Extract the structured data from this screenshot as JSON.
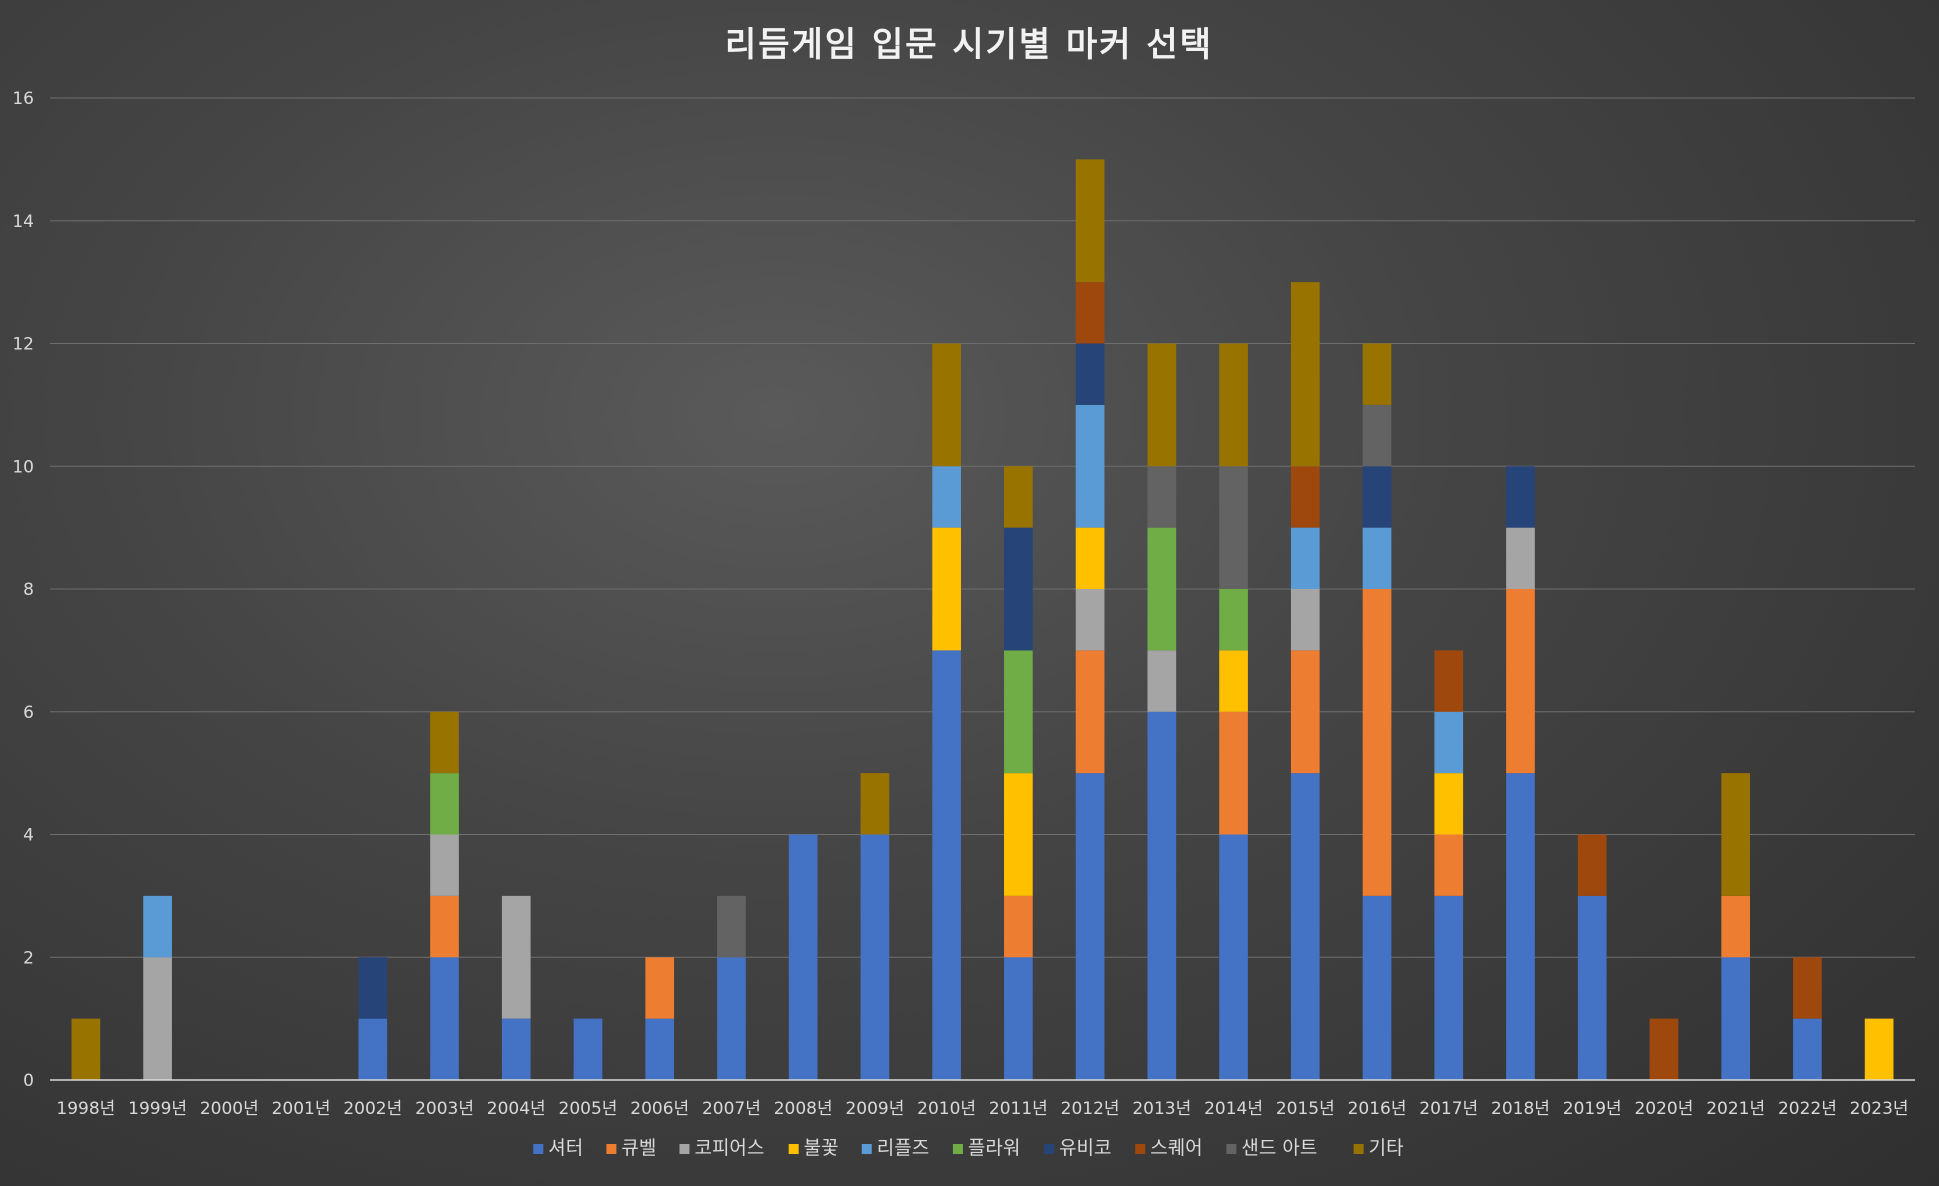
{
  "chart_data": {
    "type": "bar",
    "stacked": true,
    "title": "리듬게임 입문 시기별 마커 선택",
    "xlabel": "",
    "ylabel": "",
    "ylim": [
      0,
      16
    ],
    "yticks": [
      0,
      2,
      4,
      6,
      8,
      10,
      12,
      14,
      16
    ],
    "grid": true,
    "legend_position": "bottom",
    "categories": [
      "1998년",
      "1999년",
      "2000년",
      "2001년",
      "2002년",
      "2003년",
      "2004년",
      "2005년",
      "2006년",
      "2007년",
      "2008년",
      "2009년",
      "2010년",
      "2011년",
      "2012년",
      "2013년",
      "2014년",
      "2015년",
      "2016년",
      "2017년",
      "2018년",
      "2019년",
      "2020년",
      "2021년",
      "2022년",
      "2023년"
    ],
    "series": [
      {
        "name": "셔터",
        "color": "#4472c4",
        "values": [
          0,
          0,
          0,
          0,
          1,
          2,
          1,
          1,
          1,
          2,
          4,
          4,
          7,
          2,
          5,
          6,
          4,
          5,
          3,
          3,
          5,
          3,
          0,
          2,
          1,
          0
        ]
      },
      {
        "name": "큐벨",
        "color": "#ed7d31",
        "values": [
          0,
          0,
          0,
          0,
          0,
          1,
          0,
          0,
          1,
          0,
          0,
          0,
          0,
          1,
          2,
          0,
          2,
          2,
          5,
          1,
          3,
          0,
          0,
          1,
          0,
          0
        ]
      },
      {
        "name": "코피어스",
        "color": "#a5a5a5",
        "values": [
          0,
          2,
          0,
          0,
          0,
          1,
          2,
          0,
          0,
          0,
          0,
          0,
          0,
          0,
          1,
          1,
          0,
          1,
          0,
          0,
          1,
          0,
          0,
          0,
          0,
          0
        ]
      },
      {
        "name": "불꽃",
        "color": "#ffc000",
        "values": [
          0,
          0,
          0,
          0,
          0,
          0,
          0,
          0,
          0,
          0,
          0,
          0,
          2,
          2,
          1,
          0,
          1,
          0,
          0,
          1,
          0,
          0,
          0,
          0,
          0,
          1
        ]
      },
      {
        "name": "리플즈",
        "color": "#5b9bd5",
        "values": [
          0,
          1,
          0,
          0,
          0,
          0,
          0,
          0,
          0,
          0,
          0,
          0,
          1,
          0,
          2,
          0,
          0,
          1,
          1,
          1,
          0,
          0,
          0,
          0,
          0,
          0
        ]
      },
      {
        "name": "플라워",
        "color": "#70ad47",
        "values": [
          0,
          0,
          0,
          0,
          0,
          1,
          0,
          0,
          0,
          0,
          0,
          0,
          0,
          2,
          0,
          2,
          1,
          0,
          0,
          0,
          0,
          0,
          0,
          0,
          0,
          0
        ]
      },
      {
        "name": "유비코",
        "color": "#264478",
        "values": [
          0,
          0,
          0,
          0,
          1,
          0,
          0,
          0,
          0,
          0,
          0,
          0,
          0,
          2,
          1,
          0,
          0,
          0,
          1,
          0,
          1,
          0,
          0,
          0,
          0,
          0
        ]
      },
      {
        "name": "스퀘어",
        "color": "#9e480e",
        "values": [
          0,
          0,
          0,
          0,
          0,
          0,
          0,
          0,
          0,
          0,
          0,
          0,
          0,
          0,
          1,
          0,
          0,
          1,
          0,
          1,
          0,
          1,
          1,
          0,
          1,
          0
        ]
      },
      {
        "name": "샌드 아트",
        "color": "#636363",
        "values": [
          0,
          0,
          0,
          0,
          0,
          0,
          0,
          0,
          0,
          1,
          0,
          0,
          0,
          0,
          0,
          1,
          2,
          0,
          1,
          0,
          0,
          0,
          0,
          0,
          0,
          0
        ]
      },
      {
        "name": "기타",
        "color": "#997300",
        "values": [
          1,
          0,
          0,
          0,
          0,
          1,
          0,
          0,
          0,
          0,
          0,
          1,
          2,
          1,
          2,
          2,
          2,
          3,
          1,
          0,
          0,
          0,
          0,
          2,
          0,
          0
        ]
      }
    ]
  }
}
